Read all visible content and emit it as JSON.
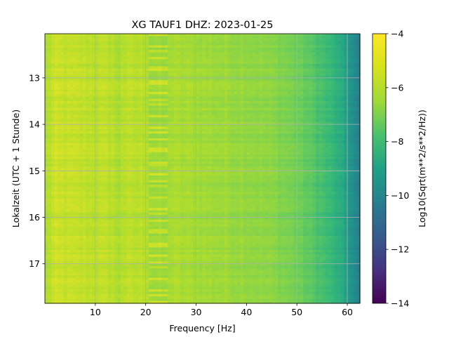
{
  "chart_data": {
    "type": "heatmap",
    "title": "XG TAUF1  DHZ: 2023-01-25",
    "xlabel": "Frequency [Hz]",
    "ylabel": "Lokalzeit (UTC + 1 Stunde)",
    "xlim": [
      0,
      62.5
    ],
    "ylim": [
      12.05,
      17.85
    ],
    "y_inverted": true,
    "x_ticks": [
      10,
      20,
      30,
      40,
      50,
      60
    ],
    "x_tick_labels": [
      "10",
      "20",
      "30",
      "40",
      "50",
      "60"
    ],
    "y_ticks": [
      13,
      14,
      15,
      16,
      17
    ],
    "y_tick_labels": [
      "13",
      "14",
      "15",
      "16",
      "17"
    ],
    "grid": true,
    "colormap": "viridis",
    "colorbar": {
      "label": "Log10(Sqrt(m**2/s**2/Hz))",
      "range": [
        -14,
        -4
      ],
      "ticks": [
        -14,
        -12,
        -10,
        -8,
        -6,
        -4
      ],
      "tick_labels": [
        "−14",
        "−12",
        "−10",
        "−8",
        "−6",
        "−4"
      ]
    },
    "frequency_profile": {
      "x": [
        0,
        2,
        5,
        10,
        15,
        20,
        25,
        30,
        35,
        40,
        45,
        48,
        50,
        52,
        55,
        57,
        59,
        60,
        61,
        62.5
      ],
      "values": [
        -5.3,
        -4.8,
        -4.9,
        -5.0,
        -5.05,
        -5.1,
        -5.3,
        -5.4,
        -5.5,
        -5.6,
        -5.8,
        -6.0,
        -6.2,
        -6.5,
        -7.0,
        -7.4,
        -8.0,
        -8.5,
        -9.0,
        -9.8
      ]
    },
    "banded_features": [
      {
        "freq_range": [
          20.5,
          24.5
        ],
        "description": "rows alternating between brighter and darker levels"
      },
      {
        "freq_range": [
          13.5,
          15.0
        ],
        "description": "darker vertical streaks"
      }
    ]
  }
}
